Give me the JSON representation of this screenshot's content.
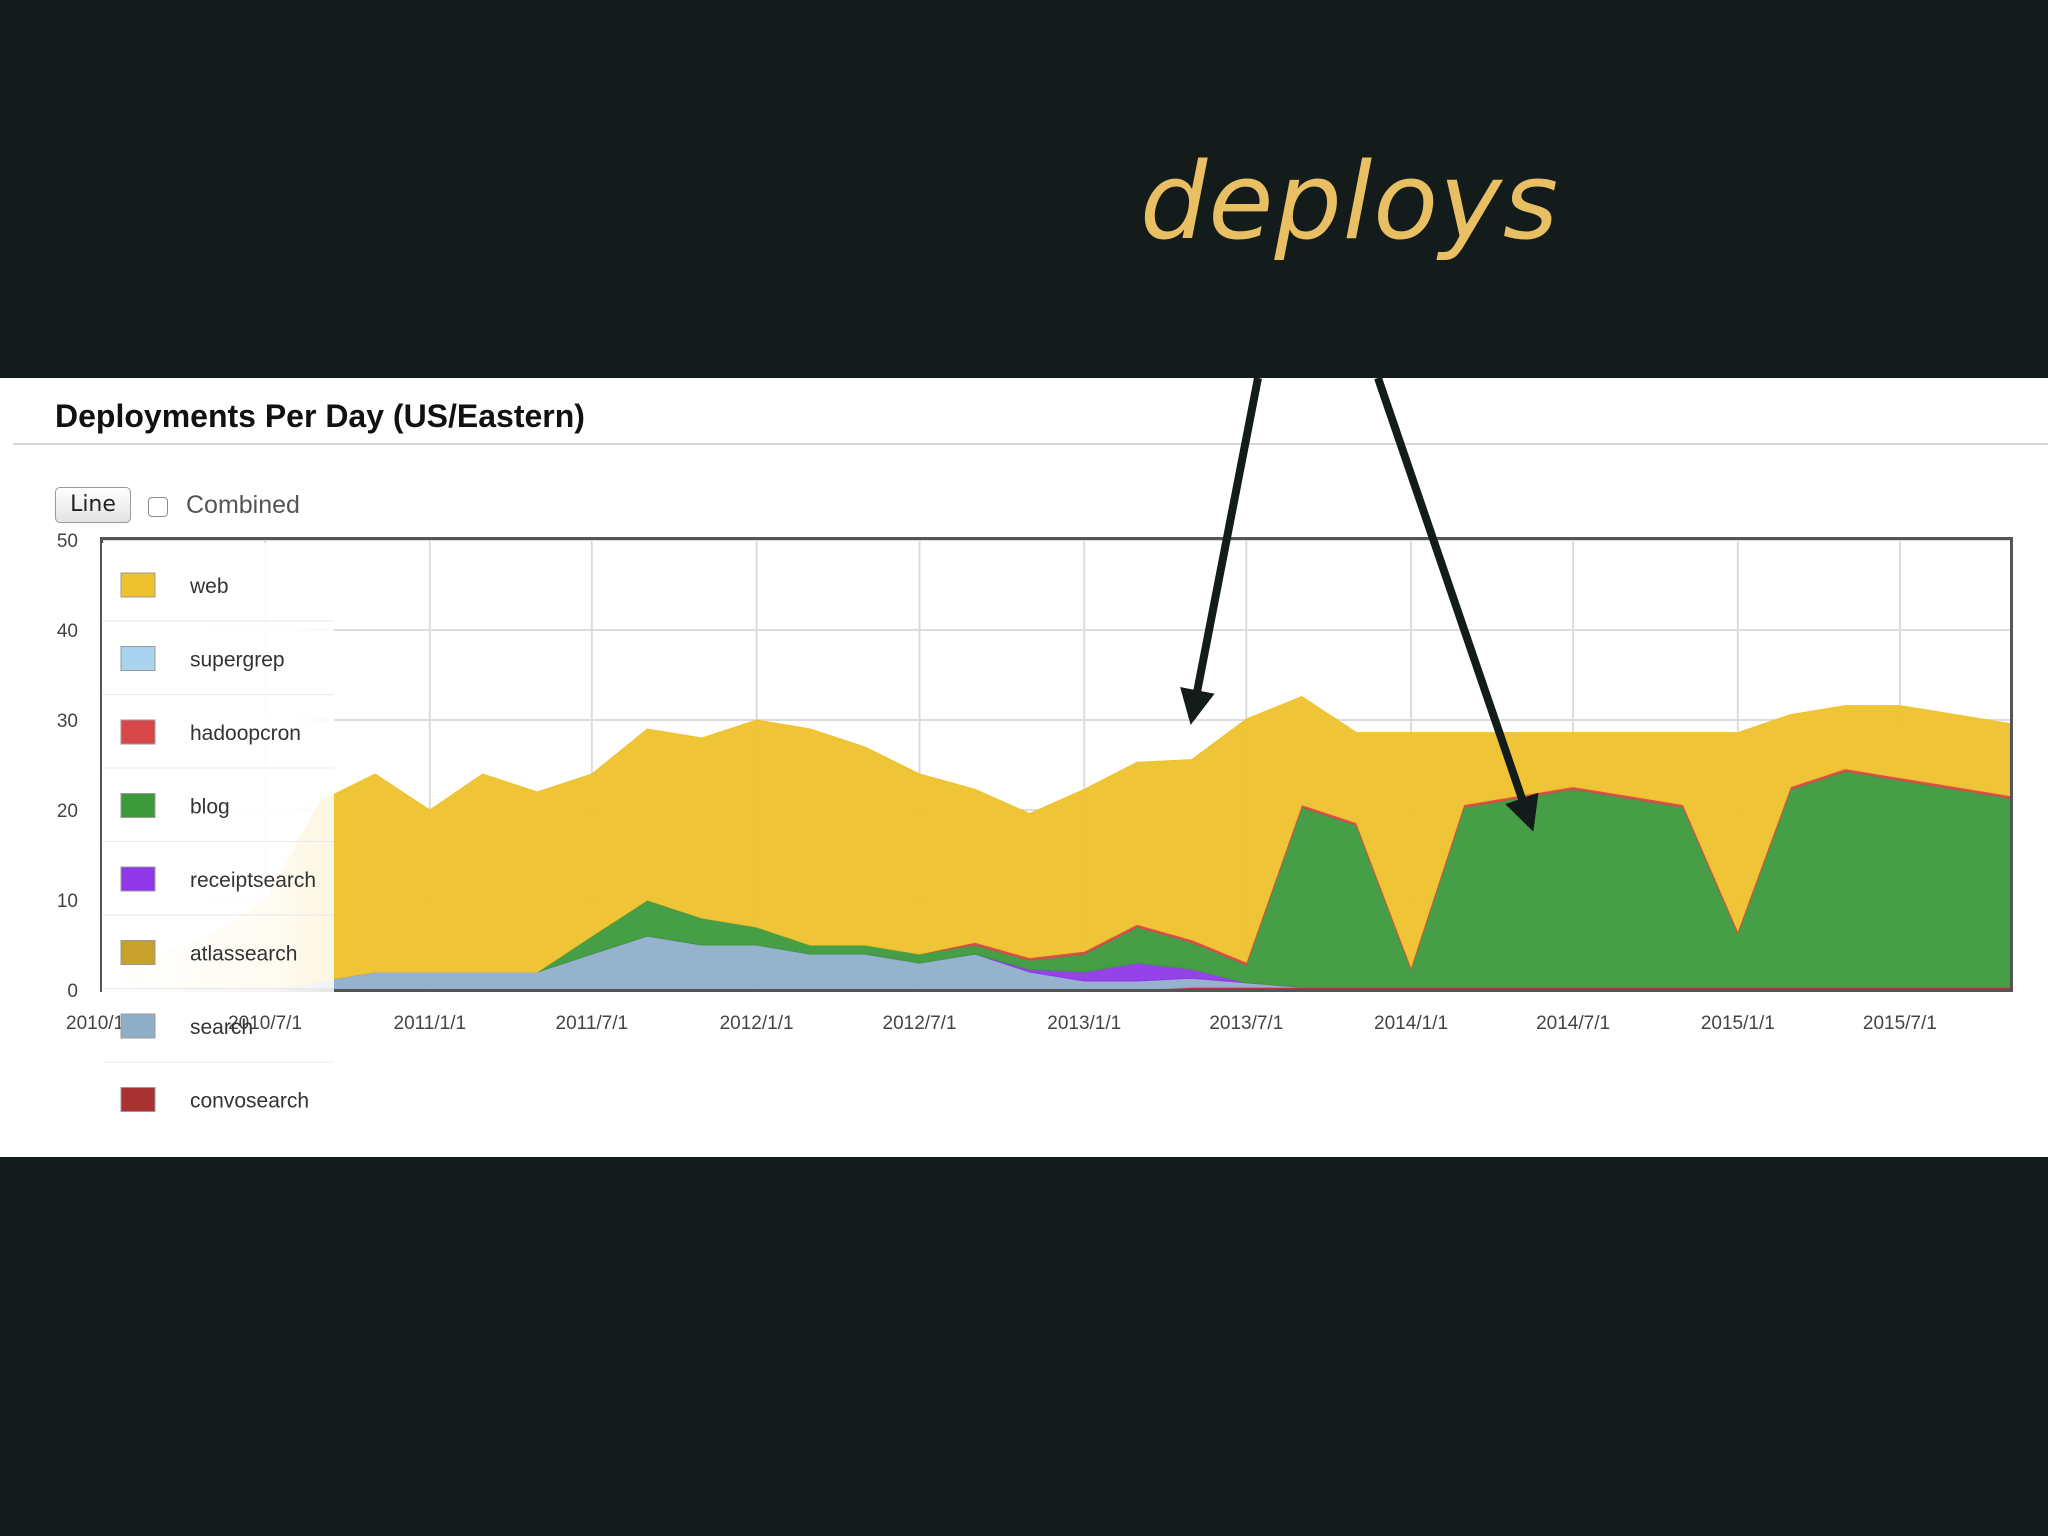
{
  "slide": {
    "title": "deploys",
    "title_color": "#e9bf64",
    "background": "#141b1b"
  },
  "panel": {
    "title": "Deployments Per Day (US/Eastern)",
    "line_button_label": "Line",
    "combined_label": "Combined",
    "combined_checked": false
  },
  "chart_data": {
    "type": "area",
    "stacked": true,
    "title": "Deployments Per Day (US/Eastern)",
    "xlabel": "",
    "ylabel": "",
    "ylim": [
      0,
      50
    ],
    "yticks": [
      0,
      10,
      20,
      30,
      40,
      50
    ],
    "xlim": [
      "2010-01-01",
      "2015-11-01"
    ],
    "xticks": [
      "2010/1/1",
      "2010/7/1",
      "2011/1/1",
      "2011/7/1",
      "2012/1/1",
      "2012/7/1",
      "2013/1/1",
      "2013/7/1",
      "2014/1/1",
      "2014/7/1",
      "2015/1/1",
      "2015/7/1"
    ],
    "grid": true,
    "legend_position": "top-left",
    "x": [
      "2010-01",
      "2010-03",
      "2010-05",
      "2010-07",
      "2010-09",
      "2010-11",
      "2011-01",
      "2011-03",
      "2011-05",
      "2011-07",
      "2011-09",
      "2011-11",
      "2012-01",
      "2012-03",
      "2012-05",
      "2012-07",
      "2012-09",
      "2012-11",
      "2013-01",
      "2013-03",
      "2013-05",
      "2013-07",
      "2013-09",
      "2013-11",
      "2014-01",
      "2014-03",
      "2014-05",
      "2014-07",
      "2014-09",
      "2014-11",
      "2015-01",
      "2015-03",
      "2015-05",
      "2015-07",
      "2015-09",
      "2015-11"
    ],
    "series": [
      {
        "name": "convosearch",
        "color": "#a83232",
        "values": [
          0,
          0,
          0,
          0,
          0,
          0,
          0,
          0,
          0,
          0,
          0,
          0,
          0,
          0,
          0,
          0,
          0,
          0,
          0,
          0,
          0.3,
          0.3,
          0.3,
          0.3,
          0.3,
          0.3,
          0.3,
          0.3,
          0.3,
          0.3,
          0.3,
          0.3,
          0.3,
          0.3,
          0.3,
          0.3
        ]
      },
      {
        "name": "search",
        "color": "#8fafc9",
        "values": [
          0,
          0,
          0,
          0,
          1,
          2,
          2,
          2,
          2,
          4,
          6,
          5,
          5,
          4,
          4,
          3,
          4,
          2,
          1,
          1,
          1,
          0.5,
          0,
          0,
          0,
          0,
          0,
          0,
          0,
          0,
          0,
          0,
          0,
          0,
          0,
          0
        ]
      },
      {
        "name": "atlassearch",
        "color": "#c8a02c",
        "values": [
          0,
          0,
          0,
          0,
          0,
          0,
          0,
          0,
          0,
          0,
          0,
          0,
          0,
          0,
          0,
          0,
          0,
          0,
          0,
          0,
          0,
          0,
          0,
          0,
          0,
          0,
          0,
          0,
          0,
          0,
          0,
          0,
          0,
          0,
          0,
          0
        ]
      },
      {
        "name": "receiptsearch",
        "color": "#9038e8",
        "values": [
          0,
          0,
          0,
          0,
          0,
          0,
          0,
          0,
          0,
          0,
          0,
          0,
          0,
          0,
          0,
          0,
          0,
          0.3,
          1,
          2,
          1,
          0,
          0,
          0,
          0,
          0,
          0,
          0,
          0,
          0,
          0,
          0,
          0,
          0,
          0,
          0
        ]
      },
      {
        "name": "blog",
        "color": "#3c9a3c",
        "values": [
          0,
          0,
          0,
          0,
          0,
          0,
          0,
          0,
          0,
          2,
          4,
          3,
          2,
          1,
          1,
          1,
          1,
          1,
          2,
          4,
          3,
          2,
          20,
          18,
          2,
          20,
          21,
          22,
          21,
          20,
          6,
          22,
          24,
          23,
          22,
          21
        ]
      },
      {
        "name": "hadoopcron",
        "color": "#d84848",
        "values": [
          0,
          0,
          0,
          0,
          0,
          0,
          0,
          0,
          0,
          0,
          0,
          0,
          0,
          0,
          0,
          0,
          0.3,
          0.3,
          0.3,
          0.3,
          0.3,
          0.3,
          0.3,
          0.3,
          0.3,
          0.3,
          0.3,
          0.3,
          0.3,
          0.3,
          0.3,
          0.3,
          0.3,
          0.3,
          0.3,
          0.3
        ]
      },
      {
        "name": "supergrep",
        "color": "#a9d4f0",
        "values": [
          0,
          0,
          0,
          0,
          0,
          0,
          0,
          0,
          0,
          0,
          0,
          0,
          0,
          0,
          0,
          0,
          0,
          0,
          0,
          0,
          0,
          0,
          0,
          0,
          0,
          0,
          0,
          0,
          0,
          0,
          0,
          0,
          0,
          0,
          0,
          0
        ]
      },
      {
        "name": "web",
        "color": "#eec22c",
        "values": [
          2,
          4,
          6,
          10,
          20,
          22,
          18,
          22,
          20,
          18,
          19,
          20,
          23,
          24,
          22,
          20,
          17,
          16,
          18,
          18,
          20,
          27,
          12,
          10,
          26,
          8,
          7,
          6,
          7,
          8,
          22,
          8,
          7,
          8,
          8,
          8
        ]
      }
    ]
  }
}
